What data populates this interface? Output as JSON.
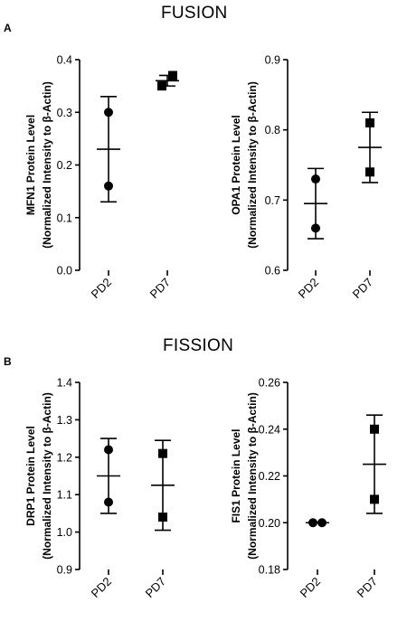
{
  "sections": [
    {
      "letter": "A",
      "title": "FUSION"
    },
    {
      "letter": "B",
      "title": "FISSION"
    }
  ],
  "chart_data": [
    {
      "type": "scatter",
      "ylabel_line1": "MFN1 Protein  Level",
      "ylabel_line2": "(Normalized Intensity to β-Actin)",
      "categories": [
        "PD2",
        "PD7"
      ],
      "ylim": [
        0.0,
        0.4
      ],
      "yticks": [
        "0.0",
        "0.1",
        "0.2",
        "0.3",
        "0.4"
      ],
      "points": [
        [
          0.3,
          0.16
        ],
        [
          0.35,
          0.37
        ]
      ],
      "markers": [
        "circle",
        "square"
      ],
      "means": [
        0.23,
        0.36
      ],
      "err_low": [
        0.13,
        0.35
      ],
      "err_high": [
        0.33,
        0.37
      ]
    },
    {
      "type": "scatter",
      "ylabel_line1": "OPA1 Protein  Level",
      "ylabel_line2": "(Normalized Intensity to β-Actin)",
      "categories": [
        "PD2",
        "PD7"
      ],
      "ylim": [
        0.6,
        0.9
      ],
      "yticks": [
        "0.6",
        "0.7",
        "0.8",
        "0.9"
      ],
      "points": [
        [
          0.73,
          0.66
        ],
        [
          0.81,
          0.74
        ]
      ],
      "markers": [
        "circle",
        "square"
      ],
      "means": [
        0.695,
        0.775
      ],
      "err_low": [
        0.645,
        0.725
      ],
      "err_high": [
        0.745,
        0.825
      ]
    },
    {
      "type": "scatter",
      "ylabel_line1": "DRP1 Protein  Level",
      "ylabel_line2": "(Normalized Intensity to β-Actin)",
      "categories": [
        "PD2",
        "PD7"
      ],
      "ylim": [
        0.9,
        1.4
      ],
      "yticks": [
        "0.9",
        "1.0",
        "1.1",
        "1.2",
        "1.3",
        "1.4"
      ],
      "points": [
        [
          1.22,
          1.08
        ],
        [
          1.21,
          1.04
        ]
      ],
      "markers": [
        "circle",
        "square"
      ],
      "means": [
        1.15,
        1.125
      ],
      "err_low": [
        1.05,
        1.005
      ],
      "err_high": [
        1.25,
        1.245
      ]
    },
    {
      "type": "scatter",
      "ylabel_line1": "FIS1 Protein  Level",
      "ylabel_line2": "(Normalized Intensity to β-Actin)",
      "categories": [
        "PD2",
        "PD7"
      ],
      "ylim": [
        0.18,
        0.26
      ],
      "yticks": [
        "0.18",
        "0.20",
        "0.22",
        "0.24",
        "0.26"
      ],
      "points": [
        [
          0.2,
          0.2
        ],
        [
          0.24,
          0.21
        ]
      ],
      "markers": [
        "circle",
        "square"
      ],
      "means": [
        0.2,
        0.225
      ],
      "err_low": [
        0.2,
        0.204
      ],
      "err_high": [
        0.2,
        0.246
      ]
    }
  ]
}
